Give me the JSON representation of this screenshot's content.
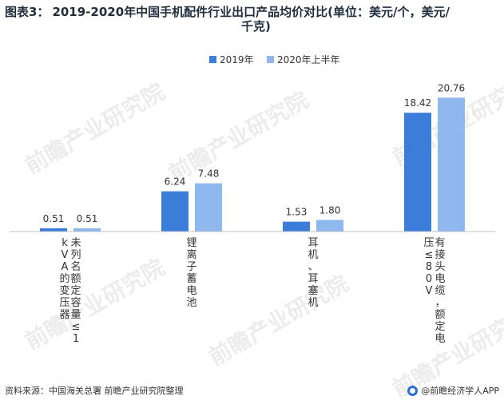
{
  "title": {
    "prefix": "图表3：",
    "line1": "2019-2020年中国手机配件行业出口产品均价对比(单位：美元/个，美元/",
    "line2": "千克)"
  },
  "footer": {
    "source": "资料来源：中国海关总署 前瞻产业研究院整理",
    "brand": "@前瞻经济学人APP"
  },
  "watermark": {
    "text": "前瞻产业研究院"
  },
  "colors": {
    "series_2019": "#3b7dd8",
    "series_2020": "#8fb8ee",
    "axis": "#bfbfbf"
  },
  "chart_data": {
    "type": "bar",
    "title": "2019-2020年中国手机配件行业出口产品均价对比(单位：美元/个，美元/千克)",
    "categories": [
      "未列名额定容量≤1kVA的变压器",
      "锂离子蓄电池",
      "耳机、耳塞机",
      "有接头电缆，额定电压≤80V"
    ],
    "series": [
      {
        "name": "2019年",
        "values": [
          0.51,
          6.24,
          1.53,
          18.42
        ]
      },
      {
        "name": "2020年上半年",
        "values": [
          0.51,
          7.48,
          1.8,
          20.76
        ]
      }
    ],
    "value_labels": [
      [
        "0.51",
        "6.24",
        "1.53",
        "18.42"
      ],
      [
        "0.51",
        "7.48",
        "1.80",
        "20.76"
      ]
    ],
    "ylim": [
      0,
      26
    ],
    "grid": false,
    "legend_position": "top-center"
  }
}
